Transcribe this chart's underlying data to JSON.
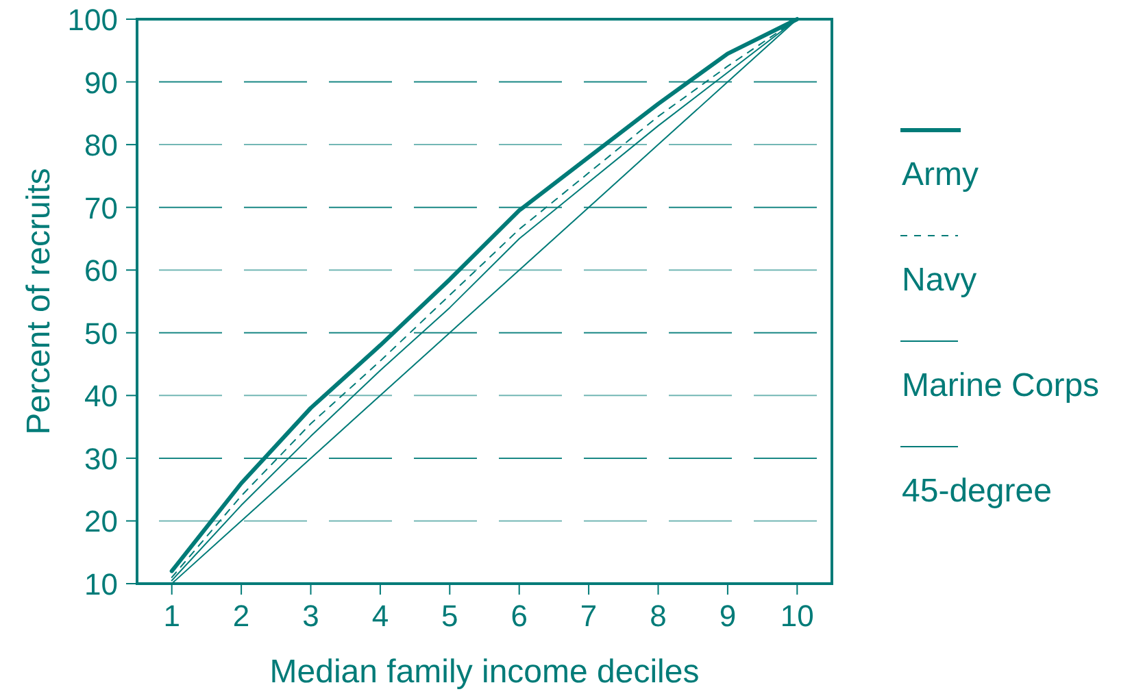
{
  "chart_data": {
    "type": "line",
    "xlabel": "Median family income deciles",
    "ylabel": "Percent of recruits",
    "x": [
      1,
      2,
      3,
      4,
      5,
      6,
      7,
      8,
      9,
      10
    ],
    "xlim": [
      0.5,
      10.5
    ],
    "xticks": [
      1,
      2,
      3,
      4,
      5,
      6,
      7,
      8,
      9,
      10
    ],
    "ylim": [
      10,
      100
    ],
    "yticks": [
      10,
      20,
      30,
      40,
      50,
      60,
      70,
      80,
      90,
      100
    ],
    "grid": "y",
    "legend": "right",
    "marker": "none",
    "series": [
      {
        "name": "Army",
        "color": "#007b78",
        "line_style": "solid",
        "values": [
          12,
          26,
          38,
          48,
          58.5,
          69.5,
          78,
          86.5,
          94.5,
          100
        ]
      },
      {
        "name": "Navy",
        "color": "#007b78",
        "line_style": "dashed",
        "values": [
          11,
          24,
          35.5,
          45.5,
          56,
          66.5,
          75.5,
          84.5,
          92.5,
          100
        ]
      },
      {
        "name": "Marine Corps",
        "color": "#007b78",
        "line_style": "solid",
        "values": [
          10.5,
          22.5,
          33.5,
          44,
          54,
          65,
          74,
          83,
          91.5,
          100
        ]
      },
      {
        "name": "45-degree",
        "color": "#007b78",
        "line_style": "solid",
        "values": [
          10,
          20,
          30,
          40,
          50,
          60,
          70,
          80,
          90,
          100
        ]
      }
    ]
  }
}
